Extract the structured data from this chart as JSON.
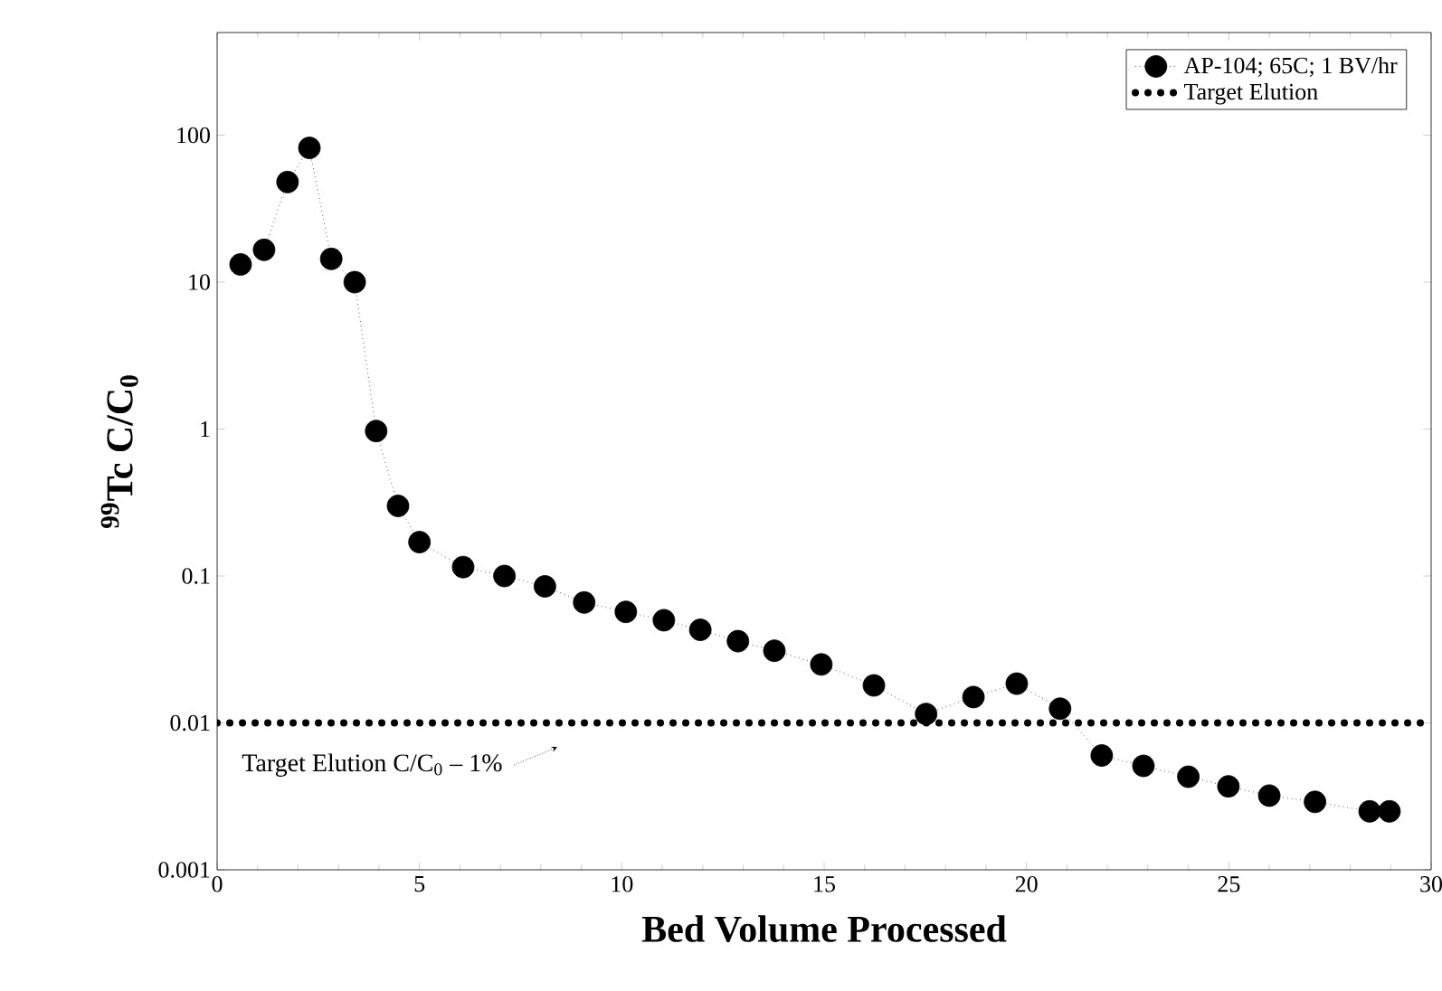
{
  "chart_data": {
    "type": "line",
    "xlabel": "Bed Volume Processed",
    "ylabel": "$^{99}$Tc C/C$_{0}$",
    "x": [
      0.58,
      1.16,
      1.74,
      2.28,
      2.82,
      3.4,
      3.93,
      4.47,
      5.0,
      6.08,
      7.1,
      8.1,
      9.07,
      10.1,
      11.04,
      11.94,
      12.87,
      13.77,
      14.93,
      16.23,
      17.52,
      18.69,
      19.76,
      20.83,
      21.86,
      22.89,
      24.0,
      24.99,
      26.0,
      27.13,
      28.48,
      28.97
    ],
    "series": [
      {
        "name": "AP-104; 65C; 1 BV/hr",
        "color": "#000000",
        "values": [
          13.2,
          16.6,
          48,
          82,
          14.4,
          10,
          0.97,
          0.3,
          0.17,
          0.115,
          0.1,
          0.085,
          0.066,
          0.057,
          0.05,
          0.043,
          0.036,
          0.031,
          0.025,
          0.018,
          0.0115,
          0.015,
          0.0185,
          0.0125,
          0.006,
          0.0051,
          0.0043,
          0.0037,
          0.0032,
          0.0029,
          0.0025,
          0.0025
        ]
      }
    ],
    "ref_lines": [
      {
        "axis": "y",
        "value": 0.01,
        "label": "Target Elution",
        "color": "#000000",
        "line_style": "dotted"
      }
    ],
    "annotations": [
      "Target Elution C/C$_{0}$ – 1%"
    ],
    "xlim": [
      0,
      30
    ],
    "xticks": [
      0,
      5,
      10,
      15,
      20,
      25,
      30
    ],
    "ylim": [
      0.001,
      500
    ],
    "yticks": [
      0.001,
      0.01,
      0.1,
      1,
      10,
      100
    ],
    "log": "y",
    "grid": false,
    "legend": "top right",
    "marker": "circle",
    "line_style": "dotted"
  }
}
